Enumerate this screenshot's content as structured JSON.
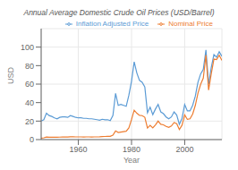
{
  "chart_data": {
    "type": "line",
    "title": "Annual Average Domestic Crude Oil Prices (USD/Barrel)",
    "xlabel": "Year",
    "ylabel": "USD",
    "x": [
      1946,
      1947,
      1948,
      1949,
      1950,
      1951,
      1952,
      1953,
      1954,
      1955,
      1956,
      1957,
      1958,
      1959,
      1960,
      1961,
      1962,
      1963,
      1964,
      1965,
      1966,
      1967,
      1968,
      1969,
      1970,
      1971,
      1972,
      1973,
      1974,
      1975,
      1976,
      1977,
      1978,
      1979,
      1980,
      1981,
      1982,
      1983,
      1984,
      1985,
      1986,
      1987,
      1988,
      1989,
      1990,
      1991,
      1992,
      1993,
      1994,
      1995,
      1996,
      1997,
      1998,
      1999,
      2000,
      2001,
      2002,
      2003,
      2004,
      2005,
      2006,
      2007,
      2008,
      2009,
      2010,
      2011,
      2012,
      2013,
      2014
    ],
    "series": [
      {
        "name": "Inflation Adjusted Price",
        "color": "#5b9bd5",
        "values": [
          20.0,
          21.5,
          28.5,
          26.0,
          25.0,
          23.5,
          22.5,
          24.0,
          24.5,
          24.5,
          24.0,
          26.0,
          25.0,
          24.0,
          23.5,
          23.5,
          23.0,
          23.0,
          22.5,
          22.5,
          22.0,
          21.5,
          21.0,
          22.0,
          21.5,
          21.5,
          20.5,
          26.0,
          50.0,
          37.0,
          38.0,
          37.0,
          36.0,
          48.0,
          63.0,
          84.0,
          72.0,
          64.0,
          62.0,
          57.0,
          29.0,
          35.0,
          27.0,
          33.0,
          38.0,
          30.0,
          28.0,
          24.5,
          22.5,
          24.5,
          30.0,
          26.5,
          16.5,
          23.0,
          38.0,
          31.0,
          31.0,
          37.0,
          47.0,
          62.0,
          71.0,
          76.0,
          97.0,
          60.0,
          78.0,
          92.0,
          89.0,
          95.0,
          90.0
        ]
      },
      {
        "name": "Nominal Price",
        "color": "#ed7d31",
        "values": [
          1.63,
          1.93,
          2.77,
          2.54,
          2.51,
          2.53,
          2.53,
          2.68,
          2.78,
          2.77,
          2.79,
          3.09,
          3.01,
          2.9,
          2.88,
          2.89,
          2.85,
          2.89,
          2.88,
          2.86,
          2.88,
          2.92,
          2.94,
          3.18,
          3.39,
          3.6,
          3.59,
          4.75,
          9.35,
          7.67,
          8.19,
          8.57,
          9.0,
          12.64,
          21.59,
          31.77,
          28.52,
          26.19,
          25.88,
          24.09,
          12.51,
          15.4,
          12.58,
          15.86,
          20.03,
          16.54,
          15.99,
          14.25,
          13.19,
          14.62,
          18.46,
          17.16,
          10.87,
          15.56,
          26.72,
          21.84,
          22.51,
          27.56,
          36.98,
          50.28,
          59.69,
          66.52,
          91.48,
          53.56,
          71.21,
          87.04,
          86.46,
          91.17,
          85.6
        ]
      }
    ],
    "xlim": [
      1946,
      2014
    ],
    "ylim": [
      0,
      120
    ],
    "xticks": [
      1960,
      1980,
      2000
    ],
    "yticks": [
      0,
      20,
      40,
      60,
      80,
      100
    ],
    "grid": true,
    "legend": "upper right"
  }
}
